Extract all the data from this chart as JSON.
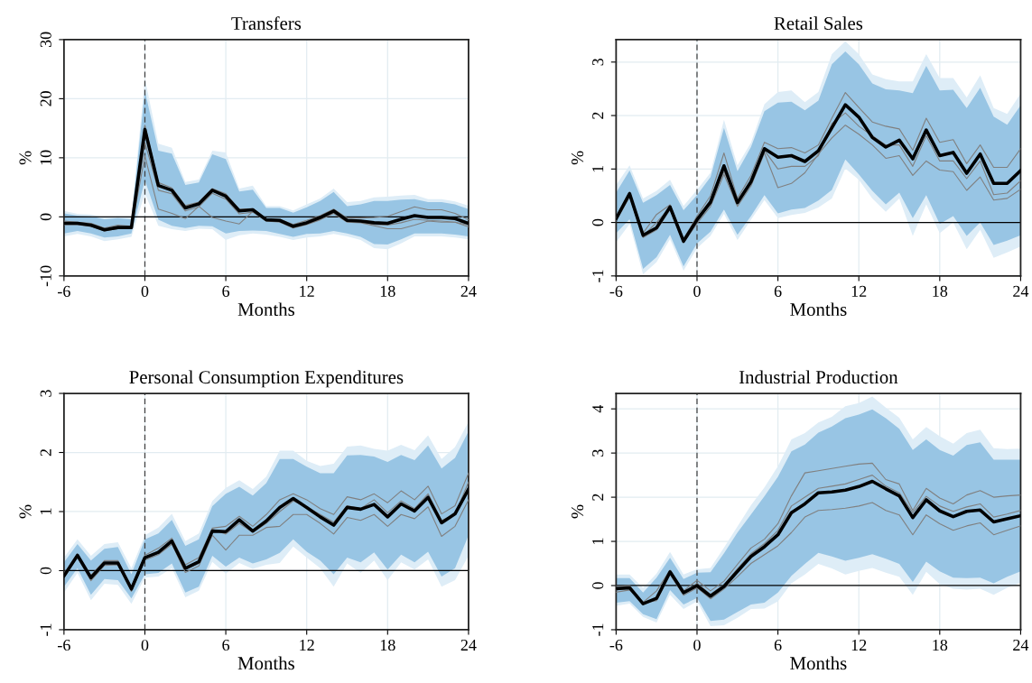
{
  "chart_data": [
    {
      "type": "line",
      "title": "Transfers",
      "xlabel": "Months",
      "ylabel": "%",
      "x": [
        -6,
        -5,
        -4,
        -3,
        -2,
        -1,
        0,
        1,
        2,
        3,
        4,
        5,
        6,
        7,
        8,
        9,
        10,
        11,
        12,
        13,
        14,
        15,
        16,
        17,
        18,
        19,
        20,
        21,
        22,
        23,
        24
      ],
      "xlim": [
        -6,
        24
      ],
      "xticks": [
        -6,
        0,
        6,
        12,
        18,
        24
      ],
      "ylim": [
        -10,
        30
      ],
      "yticks": [
        -10,
        0,
        10,
        20,
        30
      ],
      "grid": true,
      "ref_lines": [
        {
          "axis": "x",
          "value": 0,
          "color": "#404040",
          "line_style": "dashed"
        },
        {
          "axis": "y",
          "value": 0,
          "color": "#000000",
          "line_style": "solid"
        }
      ],
      "series": [
        {
          "color": "#deedf7",
          "values": [
            null,
            null,
            null,
            null,
            null,
            null,
            null,
            null,
            null,
            null,
            null,
            null,
            null,
            null,
            null,
            null,
            null,
            null,
            null,
            null,
            null,
            null,
            null,
            null,
            null,
            null,
            null,
            null,
            null,
            null,
            null
          ],
          "lower": [
            -3.3,
            -2.9,
            -3.3,
            -4.1,
            -3.8,
            -3.4,
            4.0,
            -1.5,
            -2.1,
            -2.4,
            -2.0,
            -2.1,
            -3.9,
            -3.1,
            -2.8,
            -3.0,
            -3.4,
            -3.9,
            -3.5,
            -3.3,
            -2.9,
            -3.3,
            -3.9,
            -5.3,
            -5.5,
            -4.5,
            -3.3,
            -3.3,
            -3.3,
            -3.5,
            -3.8
          ],
          "upper": [
            1.0,
            0.5,
            0.4,
            -0.1,
            0.1,
            -0.1,
            23.4,
            12.4,
            11.7,
            5.9,
            6.3,
            11.2,
            10.9,
            4.8,
            5.3,
            1.8,
            1.8,
            1.1,
            2.1,
            3.1,
            4.8,
            2.5,
            2.7,
            3.3,
            3.4,
            3.6,
            3.7,
            3.0,
            3.0,
            2.6,
            1.9
          ]
        },
        {
          "color": "#98c5e4",
          "values": [
            null,
            null,
            null,
            null,
            null,
            null,
            null,
            null,
            null,
            null,
            null,
            null,
            null,
            null,
            null,
            null,
            null,
            null,
            null,
            null,
            null,
            null,
            null,
            null,
            null,
            null,
            null,
            null,
            null,
            null,
            null
          ],
          "lower": [
            -2.8,
            -2.4,
            -2.8,
            -3.5,
            -3.3,
            -2.8,
            6.2,
            -0.5,
            -1.5,
            -1.9,
            -1.5,
            -1.6,
            -2.8,
            -2.4,
            -2.3,
            -2.4,
            -2.9,
            -3.4,
            -2.9,
            -2.8,
            -2.4,
            -2.8,
            -3.4,
            -4.6,
            -4.7,
            -3.8,
            -2.8,
            -2.8,
            -2.8,
            -3.0,
            -3.3
          ],
          "upper": [
            0.6,
            0.2,
            0.1,
            -0.4,
            -0.2,
            -0.4,
            21.3,
            11.2,
            10.7,
            5.4,
            5.8,
            10.6,
            9.8,
            4.3,
            4.6,
            1.5,
            1.5,
            0.7,
            1.6,
            2.7,
            4.2,
            1.8,
            2.1,
            2.7,
            2.7,
            2.9,
            3.0,
            2.5,
            2.5,
            2.1,
            1.3
          ]
        },
        {
          "color": "#808080",
          "values": [
            -0.7,
            -0.9,
            -1.1,
            -1.9,
            -1.4,
            -1.6,
            15.5,
            5.8,
            4.9,
            1.9,
            2.5,
            4.8,
            3.9,
            1.3,
            1.4,
            -0.3,
            -0.4,
            -1.3,
            -0.6,
            0.2,
            1.3,
            -0.2,
            -0.2,
            -0.1,
            0.1,
            0.9,
            1.7,
            1.2,
            1.2,
            0.6,
            -0.5
          ]
        },
        {
          "color": "#808080",
          "values": [
            -1.3,
            -1.3,
            -1.6,
            -2.4,
            -2.0,
            -2.0,
            10.3,
            1.3,
            0.6,
            -0.3,
            1.8,
            -0.1,
            -0.7,
            -1.2,
            0.9,
            -0.6,
            -0.7,
            -1.7,
            -1.2,
            -0.4,
            0.7,
            -0.8,
            -0.9,
            -1.3,
            -1.4,
            -1.0,
            -0.4,
            -0.6,
            -0.7,
            -0.9,
            -1.4
          ]
        },
        {
          "color": "#808080",
          "values": [
            -1.2,
            -1.2,
            -1.5,
            -2.3,
            -1.9,
            -1.9,
            12.6,
            4.5,
            3.9,
            1.0,
            1.7,
            4.0,
            3.0,
            0.5,
            0.8,
            -0.7,
            -0.9,
            -1.9,
            -1.3,
            -0.5,
            0.6,
            -0.9,
            -1.0,
            -1.5,
            -2.0,
            -2.0,
            -1.4,
            -0.7,
            -0.9,
            -0.9,
            -1.7
          ]
        },
        {
          "color": "#000000",
          "values": [
            -1.1,
            -1.1,
            -1.4,
            -2.2,
            -1.8,
            -1.8,
            14.8,
            5.3,
            4.5,
            1.5,
            2.2,
            4.5,
            3.5,
            1.0,
            1.2,
            -0.5,
            -0.6,
            -1.6,
            -1.0,
            -0.1,
            1.0,
            -0.6,
            -0.7,
            -1.0,
            -1.1,
            -0.4,
            0.2,
            -0.1,
            -0.1,
            -0.3,
            -1.1
          ]
        }
      ]
    },
    {
      "type": "line",
      "title": "Retail Sales",
      "xlabel": "Months",
      "ylabel": "%",
      "x": [
        -6,
        -5,
        -4,
        -3,
        -2,
        -1,
        0,
        1,
        2,
        3,
        4,
        5,
        6,
        7,
        8,
        9,
        10,
        11,
        12,
        13,
        14,
        15,
        16,
        17,
        18,
        19,
        20,
        21,
        22,
        23,
        24
      ],
      "xlim": [
        -6,
        24
      ],
      "xticks": [
        -6,
        0,
        6,
        12,
        18,
        24
      ],
      "ylim": [
        -1,
        3.42
      ],
      "yticks": [
        -1,
        0,
        1,
        2,
        3
      ],
      "grid": true,
      "ref_lines": [
        {
          "axis": "x",
          "value": 0,
          "color": "#404040",
          "line_style": "dashed"
        },
        {
          "axis": "y",
          "value": 0,
          "color": "#000000",
          "line_style": "solid"
        }
      ],
      "series": [
        {
          "color": "#deedf7",
          "values": [
            null,
            null,
            null,
            null,
            null,
            null,
            null,
            null,
            null,
            null,
            null,
            null,
            null,
            null,
            null,
            null,
            null,
            null,
            null,
            null,
            null,
            null,
            null,
            null,
            null,
            null,
            null,
            null,
            null,
            null,
            null
          ],
          "lower": [
            -0.37,
            -0.03,
            -0.97,
            -0.74,
            -0.31,
            -0.9,
            -0.48,
            -0.25,
            0.16,
            -0.33,
            0.05,
            0.42,
            0.08,
            0.14,
            0.18,
            0.28,
            0.45,
            1.01,
            0.8,
            0.45,
            0.2,
            0.45,
            -0.25,
            0.34,
            -0.2,
            0.0,
            -0.5,
            -0.14,
            -0.66,
            -0.56,
            -0.45
          ],
          "upper": [
            0.7,
            1.07,
            0.45,
            0.59,
            0.8,
            0.31,
            0.61,
            0.93,
            1.92,
            1.07,
            1.49,
            2.21,
            2.44,
            2.47,
            2.25,
            2.44,
            3.15,
            3.39,
            3.15,
            2.77,
            2.68,
            2.64,
            2.64,
            3.15,
            2.7,
            2.7,
            2.34,
            2.75,
            2.14,
            2.03,
            2.41
          ]
        },
        {
          "color": "#98c5e4",
          "values": [
            null,
            null,
            null,
            null,
            null,
            null,
            null,
            null,
            null,
            null,
            null,
            null,
            null,
            null,
            null,
            null,
            null,
            null,
            null,
            null,
            null,
            null,
            null,
            null,
            null,
            null,
            null,
            null,
            null,
            null,
            null
          ],
          "lower": [
            -0.2,
            0.06,
            -0.87,
            -0.65,
            -0.23,
            -0.82,
            -0.39,
            -0.17,
            0.24,
            -0.23,
            0.12,
            0.51,
            0.17,
            0.24,
            0.27,
            0.41,
            0.61,
            1.18,
            0.9,
            0.59,
            0.34,
            0.56,
            0.08,
            0.51,
            -0.03,
            0.12,
            -0.25,
            0.0,
            -0.42,
            -0.34,
            -0.24
          ],
          "upper": [
            0.56,
            0.97,
            0.37,
            0.51,
            0.7,
            0.23,
            0.51,
            0.85,
            1.77,
            0.96,
            1.41,
            2.08,
            2.24,
            2.26,
            2.1,
            2.28,
            2.96,
            3.2,
            2.96,
            2.6,
            2.49,
            2.47,
            2.42,
            2.93,
            2.47,
            2.48,
            2.14,
            2.52,
            1.98,
            1.83,
            2.19
          ]
        },
        {
          "color": "#808080",
          "values": [
            0.1,
            0.57,
            -0.2,
            0.15,
            0.33,
            -0.31,
            0.12,
            0.5,
            1.3,
            0.45,
            0.88,
            1.5,
            1.38,
            1.4,
            1.3,
            1.45,
            1.95,
            2.43,
            2.15,
            1.88,
            1.8,
            1.75,
            1.35,
            1.95,
            1.5,
            1.55,
            1.1,
            1.45,
            1.03,
            1.03,
            1.38
          ]
        },
        {
          "color": "#808080",
          "values": [
            0.03,
            0.48,
            -0.28,
            -0.14,
            0.24,
            -0.38,
            -0.02,
            0.3,
            0.9,
            0.3,
            0.68,
            1.3,
            0.65,
            0.73,
            0.93,
            1.28,
            1.58,
            1.82,
            1.65,
            1.45,
            1.2,
            1.25,
            0.88,
            1.15,
            0.98,
            0.95,
            0.6,
            0.85,
            0.42,
            0.45,
            0.62
          ]
        },
        {
          "color": "#808080",
          "values": [
            0.08,
            0.52,
            -0.25,
            0.0,
            0.28,
            -0.33,
            0.08,
            0.42,
            0.95,
            0.4,
            0.78,
            1.35,
            1.0,
            1.05,
            1.05,
            1.25,
            1.85,
            2.05,
            1.8,
            1.62,
            1.45,
            1.45,
            1.05,
            1.62,
            1.15,
            1.15,
            0.82,
            1.15,
            0.52,
            0.55,
            0.78
          ]
        },
        {
          "color": "#000000",
          "values": [
            0.07,
            0.54,
            -0.24,
            -0.1,
            0.29,
            -0.35,
            0.05,
            0.38,
            1.06,
            0.37,
            0.76,
            1.38,
            1.22,
            1.25,
            1.14,
            1.34,
            1.77,
            2.2,
            1.97,
            1.59,
            1.41,
            1.54,
            1.19,
            1.73,
            1.25,
            1.31,
            0.92,
            1.28,
            0.73,
            0.73,
            0.97
          ]
        }
      ]
    },
    {
      "type": "line",
      "title": "Personal Consumption Expenditures",
      "xlabel": "Months",
      "ylabel": "%",
      "x": [
        -6,
        -5,
        -4,
        -3,
        -2,
        -1,
        0,
        1,
        2,
        3,
        4,
        5,
        6,
        7,
        8,
        9,
        10,
        11,
        12,
        13,
        14,
        15,
        16,
        17,
        18,
        19,
        20,
        21,
        22,
        23,
        24
      ],
      "xlim": [
        -6,
        24
      ],
      "xticks": [
        -6,
        0,
        6,
        12,
        18,
        24
      ],
      "ylim": [
        -1,
        3
      ],
      "yticks": [
        -1,
        0,
        1,
        2,
        3
      ],
      "grid": true,
      "ref_lines": [
        {
          "axis": "x",
          "value": 0,
          "color": "#404040",
          "line_style": "dashed"
        },
        {
          "axis": "y",
          "value": 0,
          "color": "#000000",
          "line_style": "solid"
        }
      ],
      "series": [
        {
          "color": "#deedf7",
          "values": [
            null,
            null,
            null,
            null,
            null,
            null,
            null,
            null,
            null,
            null,
            null,
            null,
            null,
            null,
            null,
            null,
            null,
            null,
            null,
            null,
            null,
            null,
            null,
            null,
            null,
            null,
            null,
            null,
            null,
            null,
            null
          ],
          "lower": [
            -0.37,
            -0.04,
            -0.5,
            -0.22,
            -0.24,
            -0.56,
            -0.12,
            -0.1,
            0.04,
            -0.45,
            -0.34,
            0.15,
            -0.05,
            0.13,
            0.03,
            0.1,
            0.13,
            0.41,
            0.22,
            0.04,
            -0.27,
            0.12,
            -0.04,
            0.17,
            -0.16,
            0.14,
            0.02,
            0.19,
            -0.27,
            -0.16,
            0.25
          ],
          "upper": [
            0.22,
            0.53,
            0.25,
            0.45,
            0.48,
            0.04,
            0.6,
            0.73,
            0.96,
            0.5,
            0.63,
            1.18,
            1.4,
            1.53,
            1.38,
            1.59,
            2.03,
            2.03,
            1.86,
            1.77,
            1.81,
            2.1,
            2.12,
            2.06,
            2.03,
            2.13,
            2.04,
            2.29,
            1.89,
            2.09,
            2.52
          ]
        },
        {
          "color": "#98c5e4",
          "values": [
            null,
            null,
            null,
            null,
            null,
            null,
            null,
            null,
            null,
            null,
            null,
            null,
            null,
            null,
            null,
            null,
            null,
            null,
            null,
            null,
            null,
            null,
            null,
            null,
            null,
            null,
            null,
            null,
            null,
            null,
            null
          ],
          "lower": [
            -0.27,
            0.04,
            -0.41,
            -0.14,
            -0.16,
            -0.47,
            -0.06,
            -0.04,
            0.12,
            -0.37,
            -0.27,
            0.25,
            0.07,
            0.22,
            0.12,
            0.19,
            0.3,
            0.53,
            0.32,
            0.17,
            -0.06,
            0.22,
            0.14,
            0.31,
            0.02,
            0.27,
            0.14,
            0.32,
            -0.1,
            0.04,
            0.6
          ],
          "upper": [
            0.14,
            0.45,
            0.17,
            0.37,
            0.4,
            -0.06,
            0.53,
            0.63,
            0.86,
            0.42,
            0.53,
            1.09,
            1.3,
            1.42,
            1.27,
            1.48,
            1.89,
            1.89,
            1.76,
            1.65,
            1.65,
            1.95,
            1.96,
            1.93,
            1.84,
            1.96,
            1.87,
            2.12,
            1.73,
            1.91,
            2.36
          ]
        },
        {
          "color": "#808080",
          "values": [
            -0.05,
            0.28,
            -0.08,
            0.17,
            0.17,
            -0.27,
            0.26,
            0.38,
            0.55,
            0.1,
            0.22,
            0.72,
            0.75,
            0.92,
            0.75,
            0.95,
            1.2,
            1.3,
            1.2,
            1.05,
            0.95,
            1.25,
            1.2,
            1.3,
            1.15,
            1.35,
            1.2,
            1.43,
            0.96,
            1.1,
            1.65
          ]
        },
        {
          "color": "#808080",
          "values": [
            -0.12,
            0.23,
            -0.17,
            0.09,
            0.1,
            -0.35,
            0.18,
            0.27,
            0.45,
            -0.03,
            0.08,
            0.6,
            0.35,
            0.6,
            0.6,
            0.73,
            0.75,
            0.95,
            0.95,
            0.8,
            0.62,
            0.9,
            0.85,
            0.95,
            0.75,
            0.95,
            0.88,
            1.08,
            0.58,
            0.75,
            1.2
          ]
        },
        {
          "color": "#808080",
          "values": [
            -0.09,
            0.25,
            -0.14,
            0.13,
            0.12,
            -0.3,
            0.21,
            0.33,
            0.48,
            0.02,
            0.12,
            0.7,
            0.62,
            0.8,
            0.65,
            0.8,
            1.0,
            1.18,
            1.08,
            0.95,
            0.82,
            1.1,
            1.05,
            1.2,
            0.98,
            1.18,
            1.05,
            1.3,
            0.85,
            0.95,
            1.5
          ]
        },
        {
          "color": "#000000",
          "values": [
            -0.09,
            0.26,
            -0.12,
            0.13,
            0.13,
            -0.31,
            0.22,
            0.31,
            0.5,
            0.04,
            0.15,
            0.67,
            0.66,
            0.86,
            0.67,
            0.84,
            1.07,
            1.22,
            1.07,
            0.91,
            0.77,
            1.07,
            1.04,
            1.12,
            0.91,
            1.13,
            1.01,
            1.24,
            0.81,
            0.96,
            1.38
          ]
        }
      ]
    },
    {
      "type": "line",
      "title": "Industrial Production",
      "xlabel": "Months",
      "ylabel": "%",
      "x": [
        -6,
        -5,
        -4,
        -3,
        -2,
        -1,
        0,
        1,
        2,
        3,
        4,
        5,
        6,
        7,
        8,
        9,
        10,
        11,
        12,
        13,
        14,
        15,
        16,
        17,
        18,
        19,
        20,
        21,
        22,
        23,
        24
      ],
      "xlim": [
        -6,
        24
      ],
      "xticks": [
        -6,
        0,
        6,
        12,
        18,
        24
      ],
      "ylim": [
        -1,
        4.35
      ],
      "yticks": [
        -1,
        0,
        1,
        2,
        3,
        4
      ],
      "grid": true,
      "ref_lines": [
        {
          "axis": "x",
          "value": 0,
          "color": "#404040",
          "line_style": "dashed"
        },
        {
          "axis": "y",
          "value": 0,
          "color": "#000000",
          "line_style": "solid"
        }
      ],
      "series": [
        {
          "color": "#deedf7",
          "values": [
            null,
            null,
            null,
            null,
            null,
            null,
            null,
            null,
            null,
            null,
            null,
            null,
            null,
            null,
            null,
            null,
            null,
            null,
            null,
            null,
            null,
            null,
            null,
            null,
            null,
            null,
            null,
            null,
            null,
            null,
            null
          ],
          "lower": [
            -0.46,
            -0.41,
            -0.71,
            -0.84,
            -0.21,
            -0.53,
            -0.36,
            -0.92,
            -0.9,
            -0.73,
            -0.53,
            -0.52,
            -0.36,
            0.05,
            0.25,
            0.49,
            0.39,
            0.25,
            0.33,
            0.4,
            0.29,
            0.2,
            -0.21,
            0.31,
            0.03,
            -0.07,
            -0.09,
            -0.07,
            -0.21,
            -0.05,
            0.06
          ],
          "upper": [
            0.25,
            0.25,
            -0.05,
            0.27,
            0.76,
            0.25,
            0.37,
            0.4,
            0.86,
            1.34,
            1.82,
            2.22,
            2.7,
            3.31,
            3.45,
            3.69,
            3.82,
            4.06,
            4.13,
            4.28,
            4.03,
            3.8,
            3.31,
            3.59,
            3.38,
            3.21,
            3.45,
            3.53,
            3.11,
            3.09,
            3.1
          ]
        },
        {
          "color": "#98c5e4",
          "values": [
            null,
            null,
            null,
            null,
            null,
            null,
            null,
            null,
            null,
            null,
            null,
            null,
            null,
            null,
            null,
            null,
            null,
            null,
            null,
            null,
            null,
            null,
            null,
            null,
            null,
            null,
            null,
            null,
            null,
            null,
            null
          ],
          "lower": [
            -0.39,
            -0.35,
            -0.65,
            -0.76,
            -0.1,
            -0.43,
            -0.28,
            -0.8,
            -0.77,
            -0.6,
            -0.43,
            -0.39,
            -0.16,
            0.22,
            0.49,
            0.74,
            0.66,
            0.56,
            0.63,
            0.71,
            0.61,
            0.49,
            0.08,
            0.54,
            0.32,
            0.18,
            0.17,
            0.18,
            0.05,
            0.2,
            0.32
          ],
          "upper": [
            0.17,
            0.17,
            -0.16,
            0.18,
            0.63,
            0.15,
            0.29,
            0.3,
            0.73,
            1.2,
            1.61,
            2.02,
            2.46,
            3.04,
            3.19,
            3.46,
            3.6,
            3.79,
            3.87,
            3.99,
            3.79,
            3.55,
            3.07,
            3.31,
            3.07,
            2.94,
            3.18,
            3.24,
            2.85,
            2.85,
            2.85
          ]
        },
        {
          "color": "#808080",
          "values": [
            -0.02,
            0.0,
            -0.38,
            -0.12,
            0.35,
            -0.12,
            0.12,
            -0.12,
            0.1,
            0.48,
            0.85,
            1.05,
            1.4,
            2.03,
            2.55,
            2.6,
            2.65,
            2.7,
            2.75,
            2.77,
            2.4,
            2.3,
            1.7,
            2.2,
            1.98,
            1.85,
            2.05,
            2.15,
            2.0,
            2.03,
            2.05
          ]
        },
        {
          "color": "#808080",
          "values": [
            -0.15,
            -0.1,
            -0.4,
            -0.34,
            0.25,
            -0.22,
            -0.05,
            -0.3,
            -0.08,
            0.2,
            0.5,
            0.7,
            0.9,
            1.2,
            1.55,
            1.7,
            1.72,
            1.75,
            1.8,
            1.88,
            1.7,
            1.6,
            1.15,
            1.6,
            1.4,
            1.25,
            1.35,
            1.42,
            1.15,
            1.25,
            1.35
          ]
        },
        {
          "color": "#808080",
          "values": [
            -0.1,
            -0.07,
            -0.4,
            -0.3,
            0.28,
            -0.18,
            0.05,
            -0.2,
            0.02,
            0.38,
            0.72,
            0.95,
            1.25,
            1.8,
            2.0,
            2.2,
            2.25,
            2.3,
            2.4,
            2.5,
            2.25,
            2.1,
            1.65,
            2.02,
            1.8,
            1.68,
            1.78,
            1.85,
            1.55,
            1.62,
            1.7
          ]
        },
        {
          "color": "#000000",
          "values": [
            -0.07,
            -0.05,
            -0.41,
            -0.29,
            0.31,
            -0.16,
            0.0,
            -0.24,
            -0.02,
            0.32,
            0.66,
            0.88,
            1.15,
            1.65,
            1.85,
            2.1,
            2.12,
            2.16,
            2.24,
            2.36,
            2.19,
            2.03,
            1.54,
            1.94,
            1.69,
            1.56,
            1.68,
            1.71,
            1.44,
            1.51,
            1.58
          ]
        }
      ]
    }
  ]
}
